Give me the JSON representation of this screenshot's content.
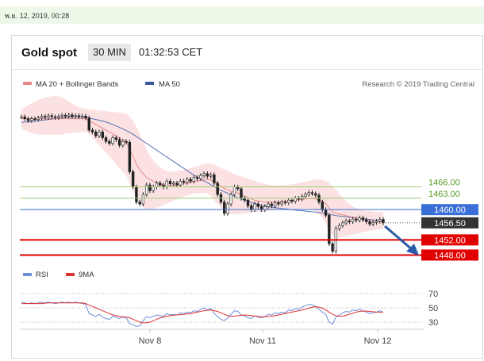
{
  "timestamp": "พ.ย. 12, 2019, 00:28",
  "header": {
    "title": "Gold spot",
    "interval": "30 MIN",
    "clock": "01:32:53 CET"
  },
  "legend": {
    "ma20_bb": "MA 20 + Bollinger Bands",
    "ma50": "MA 50",
    "copyright": "Research © 2019 Trading Central",
    "rsi": "RSI",
    "rsi_ma": "9MA"
  },
  "colors": {
    "bollinger": "#f7c9c9",
    "ma20": "#e88a8a",
    "ma50": "#5a73b5",
    "candle": "#222222",
    "green_level": "#9ecb7a",
    "blue_level": "#3a6fd8",
    "red_level": "#e00000",
    "last_price": "#333333",
    "arrow": "#2a5aa8",
    "rsi": "#6f8fd9",
    "rsi_ma": "#e03030"
  },
  "chart_data": {
    "type": "candlestick",
    "ylim": [
      1446,
      1490
    ],
    "x_ticks": [
      "Nov 8",
      "Nov 11",
      "Nov 12"
    ],
    "levels": [
      {
        "value": 1466.0,
        "label": "1466.00",
        "kind": "resistance",
        "color": "#9ecb7a"
      },
      {
        "value": 1463.0,
        "label": "1463.00",
        "kind": "resistance",
        "color": "#9ecb7a"
      },
      {
        "value": 1460.0,
        "label": "1460.00",
        "kind": "pivot",
        "color": "#3a6fd8"
      },
      {
        "value": 1456.5,
        "label": "1456.50",
        "kind": "last",
        "color": "#333333"
      },
      {
        "value": 1452.0,
        "label": "1452.00",
        "kind": "support",
        "color": "#e00000"
      },
      {
        "value": 1448.0,
        "label": "1448.00",
        "kind": "support",
        "color": "#e00000"
      }
    ],
    "close": [
      1484.5,
      1484,
      1483.5,
      1484,
      1483.8,
      1484.2,
      1484.6,
      1484.4,
      1484.8,
      1484.5,
      1484.3,
      1484.6,
      1484.9,
      1484.7,
      1485,
      1484.6,
      1484.8,
      1484.5,
      1484.7,
      1484.2,
      1481,
      1480.5,
      1479.5,
      1480.5,
      1479,
      1478,
      1477.5,
      1479,
      1478.5,
      1477,
      1478,
      1477.8,
      1470,
      1466,
      1462,
      1461.5,
      1464,
      1466.5,
      1465,
      1466,
      1467,
      1466.5,
      1466,
      1467.5,
      1466.8,
      1467,
      1466.5,
      1467.5,
      1467.2,
      1468,
      1467.5,
      1468.5,
      1468.2,
      1469,
      1469.5,
      1468.8,
      1469.2,
      1467,
      1464,
      1462,
      1459,
      1461.5,
      1464,
      1466,
      1465.5,
      1463,
      1462.5,
      1461,
      1460,
      1461.5,
      1460.8,
      1460,
      1460.8,
      1461.5,
      1461,
      1461.8,
      1461.5,
      1462,
      1461.8,
      1462.5,
      1462.2,
      1463,
      1462.8,
      1463.5,
      1464,
      1464.5,
      1464.2,
      1463.8,
      1462,
      1460,
      1458.5,
      1451,
      1449,
      1455,
      1455.8,
      1456.5,
      1457,
      1456.8,
      1457.5,
      1457.2,
      1457.8,
      1457.3,
      1456.8,
      1456.2,
      1456.6,
      1456.9,
      1457.4,
      1456.5
    ],
    "ma20": [
      1484,
      1484,
      1484,
      1484,
      1484,
      1484,
      1484,
      1484,
      1484,
      1484,
      1484,
      1484,
      1484,
      1484,
      1484,
      1484,
      1484,
      1484,
      1484,
      1484,
      1483.5,
      1483,
      1482.5,
      1482,
      1481.5,
      1481,
      1480.5,
      1480,
      1479.5,
      1479,
      1478.5,
      1478,
      1476,
      1474,
      1472,
      1470.5,
      1469.5,
      1468.5,
      1468,
      1467.5,
      1467.2,
      1466.8,
      1466.5,
      1466.5,
      1466.4,
      1466.4,
      1466.5,
      1466.6,
      1466.8,
      1467,
      1467.2,
      1467.4,
      1467.5,
      1467.7,
      1467.9,
      1468,
      1467.8,
      1467.4,
      1466.8,
      1466.2,
      1465.6,
      1465.2,
      1464.8,
      1464.6,
      1464.4,
      1464,
      1463.6,
      1463.2,
      1462.8,
      1462.5,
      1462.3,
      1462.1,
      1462,
      1462,
      1462,
      1462,
      1462,
      1462.1,
      1462.2,
      1462.3,
      1462.4,
      1462.5,
      1462.6,
      1462.7,
      1462.8,
      1462.9,
      1462.9,
      1462.8,
      1462.6,
      1462.2,
      1461.6,
      1460.4,
      1459.4,
      1459,
      1458.8,
      1458.6,
      1458.4,
      1458.2,
      1458,
      1457.8,
      1457.6,
      1457.4,
      1457.2,
      1457,
      1456.9,
      1456.8,
      1456.8,
      1456.7
    ],
    "bb_upper": [
      1486.5,
      1487,
      1487.5,
      1488,
      1488.5,
      1489,
      1489.3,
      1489.6,
      1489.8,
      1489.9,
      1490,
      1489.9,
      1489.6,
      1489.2,
      1488.6,
      1488,
      1487.5,
      1487,
      1486.8,
      1486.6,
      1486.5,
      1486.4,
      1486.3,
      1486.2,
      1486.1,
      1486,
      1485.9,
      1485.8,
      1485.7,
      1485.6,
      1485.5,
      1485.3,
      1484.6,
      1483.4,
      1481.8,
      1480,
      1478,
      1476,
      1474.3,
      1473,
      1472,
      1471.2,
      1470.6,
      1470.2,
      1470,
      1470,
      1470.1,
      1470.3,
      1470.5,
      1470.7,
      1471,
      1471.2,
      1471.5,
      1471.8,
      1472,
      1472.2,
      1472.1,
      1471.8,
      1471.4,
      1471,
      1470.6,
      1470.2,
      1469.8,
      1469.4,
      1469.1,
      1468.8,
      1468.5,
      1468.2,
      1467.9,
      1467.6,
      1467.3,
      1467,
      1466.8,
      1466.6,
      1466.5,
      1466.4,
      1466.4,
      1466.4,
      1466.5,
      1466.6,
      1466.7,
      1466.8,
      1467,
      1467.2,
      1467.4,
      1467.6,
      1467.8,
      1467.9,
      1468,
      1467.9,
      1467.6,
      1467,
      1466.2,
      1465.2,
      1464.2,
      1463.2,
      1462.3,
      1461.5,
      1460.8,
      1460.4,
      1460.1,
      1459.9,
      1459.7,
      1459.6,
      1459.5,
      1459.4,
      1459.4,
      1459.3
    ],
    "bb_lower": [
      1481.5,
      1481,
      1480.6,
      1480.2,
      1480,
      1479.9,
      1479.8,
      1479.8,
      1479.8,
      1479.8,
      1479.8,
      1479.8,
      1479.9,
      1480,
      1480.1,
      1480.2,
      1480.3,
      1480.4,
      1480.5,
      1480.6,
      1480,
      1479,
      1478,
      1477,
      1476,
      1475,
      1474,
      1473,
      1472,
      1471,
      1470,
      1469,
      1467,
      1465,
      1463,
      1461.5,
      1460.5,
      1460,
      1460,
      1460.2,
      1460.5,
      1460.8,
      1461.2,
      1461.6,
      1462,
      1462.4,
      1462.8,
      1463.1,
      1463.4,
      1463.7,
      1464,
      1464.2,
      1464.3,
      1464.4,
      1464.4,
      1464.3,
      1463.5,
      1462.5,
      1461.5,
      1460.5,
      1459.5,
      1459,
      1458.8,
      1458.8,
      1458.8,
      1458.9,
      1459,
      1459.1,
      1459.2,
      1459.3,
      1459.4,
      1459.5,
      1459.6,
      1459.7,
      1459.8,
      1459.9,
      1460,
      1460.1,
      1460.2,
      1460.2,
      1460.2,
      1460.2,
      1460.2,
      1460.2,
      1460.2,
      1460.2,
      1460,
      1459.5,
      1458.8,
      1457.8,
      1456.5,
      1454.5,
      1453,
      1452.5,
      1452.6,
      1452.8,
      1453,
      1453.2,
      1453.4,
      1453.6,
      1453.8,
      1454,
      1454.2,
      1454.4,
      1454.6,
      1454.7,
      1454.8,
      1454.9
    ],
    "ma50": [
      1483,
      1483.1,
      1483.2,
      1483.3,
      1483.4,
      1483.5,
      1483.6,
      1483.7,
      1483.8,
      1483.9,
      1484,
      1484.1,
      1484.2,
      1484.3,
      1484.4,
      1484.5,
      1484.5,
      1484.5,
      1484.5,
      1484.4,
      1484.2,
      1484,
      1483.8,
      1483.6,
      1483.4,
      1483.1,
      1482.8,
      1482.5,
      1482.1,
      1481.7,
      1481.3,
      1480.9,
      1480.4,
      1479.9,
      1479.3,
      1478.7,
      1478.1,
      1477.5,
      1476.9,
      1476.3,
      1475.7,
      1475.1,
      1474.5,
      1473.9,
      1473.3,
      1472.7,
      1472.1,
      1471.5,
      1470.9,
      1470.3,
      1469.7,
      1469.1,
      1468.6,
      1468.1,
      1467.6,
      1467.1,
      1466.6,
      1466.1,
      1465.6,
      1465.1,
      1464.7,
      1464.3,
      1463.9,
      1463.5,
      1463.1,
      1462.8,
      1462.5,
      1462.2,
      1461.9,
      1461.6,
      1461.4,
      1461.2,
      1461,
      1460.8,
      1460.6,
      1460.5,
      1460.4,
      1460.3,
      1460.2,
      1460.1,
      1460,
      1459.9,
      1459.8,
      1459.7,
      1459.6,
      1459.5,
      1459.4,
      1459.3,
      1459.2,
      1459.1,
      1459,
      1458.8,
      1458.6,
      1458.4,
      1458.3,
      1458.2,
      1458.1,
      1458,
      1457.9,
      1457.8,
      1457.7,
      1457.6,
      1457.5,
      1457.4,
      1457.3,
      1457.2,
      1457.1,
      1457
    ],
    "rsi": {
      "ylim": [
        20,
        80
      ],
      "ticks": [
        70,
        50,
        30
      ],
      "values": [
        58,
        57,
        56,
        57,
        56,
        57,
        58,
        57,
        58,
        57,
        56,
        57,
        58,
        57,
        58,
        57,
        58,
        57,
        56,
        55,
        42,
        40,
        38,
        41,
        37,
        35,
        34,
        38,
        37,
        35,
        37,
        36,
        28,
        26,
        24,
        25,
        32,
        38,
        36,
        38,
        40,
        39,
        38,
        42,
        40,
        41,
        40,
        43,
        42,
        44,
        43,
        46,
        45,
        48,
        50,
        47,
        49,
        42,
        38,
        34,
        32,
        36,
        41,
        46,
        45,
        40,
        39,
        36,
        35,
        39,
        37,
        36,
        38,
        41,
        40,
        43,
        42,
        44,
        43,
        47,
        46,
        49,
        48,
        51,
        53,
        55,
        54,
        52,
        48,
        44,
        41,
        30,
        27,
        37,
        40,
        43,
        45,
        44,
        47,
        46,
        48,
        46,
        44,
        42,
        43,
        44,
        46,
        44
      ],
      "ma": [
        56,
        56,
        56,
        56,
        56,
        56,
        56,
        56.5,
        57,
        57,
        57,
        57,
        57,
        57,
        57,
        57,
        57,
        57,
        57,
        56,
        54,
        52,
        50,
        48,
        46,
        44,
        42,
        40,
        39,
        38,
        37.5,
        37,
        36,
        34,
        32,
        30,
        29,
        29,
        30,
        32,
        34,
        36,
        37,
        38,
        39,
        39.5,
        40,
        40.5,
        41,
        41.5,
        42,
        43,
        44,
        45,
        46,
        46.5,
        47,
        46,
        45,
        43,
        41,
        39,
        38,
        38.5,
        39,
        39.5,
        40,
        39.5,
        39,
        38.5,
        38,
        37.5,
        37.5,
        38,
        38.5,
        39,
        40,
        41,
        42,
        43,
        44,
        45,
        46,
        47,
        48,
        49.5,
        51,
        51.5,
        51,
        49.5,
        47,
        44,
        41,
        39,
        38,
        38.5,
        39.5,
        41,
        42.5,
        44,
        45,
        45.5,
        45.5,
        45,
        44.5,
        44,
        44,
        44
      ]
    }
  }
}
